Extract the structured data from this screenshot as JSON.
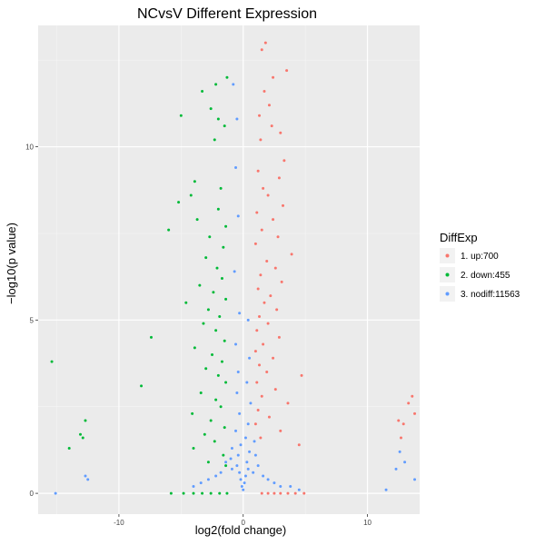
{
  "chart_data": {
    "type": "scatter",
    "title": "NCvsV Different Expression",
    "xlabel": "log2(fold change)",
    "ylabel": "−log10(p value)",
    "xlim": [
      -16.5,
      14.2
    ],
    "ylim": [
      -0.6,
      13.5
    ],
    "x_ticks": [
      -10,
      0,
      10
    ],
    "x_tick_labels": [
      "-10",
      "0",
      "10"
    ],
    "y_ticks": [
      0,
      5,
      10
    ],
    "y_tick_labels": [
      "0",
      "5",
      "10"
    ],
    "grid": true,
    "legend_position": "right",
    "legend": {
      "title": "DiffExp",
      "entries": [
        {
          "label": "1. up:700",
          "color": "#F8766D"
        },
        {
          "label": "2. down:455",
          "color": "#00BA38"
        },
        {
          "label": "3. nodiff:11563",
          "color": "#619CFF"
        }
      ]
    },
    "series": [
      {
        "name": "1. up:700",
        "color": "#F8766D",
        "points": [
          [
            1.8,
            13.0
          ],
          [
            1.5,
            12.8
          ],
          [
            3.5,
            12.2
          ],
          [
            2.4,
            12.0
          ],
          [
            1.7,
            11.6
          ],
          [
            2.1,
            11.2
          ],
          [
            1.3,
            10.9
          ],
          [
            2.3,
            10.6
          ],
          [
            3.0,
            10.4
          ],
          [
            1.4,
            10.2
          ],
          [
            3.3,
            9.6
          ],
          [
            1.2,
            9.3
          ],
          [
            2.9,
            9.1
          ],
          [
            1.6,
            8.8
          ],
          [
            2.0,
            8.6
          ],
          [
            3.2,
            8.3
          ],
          [
            1.1,
            8.1
          ],
          [
            2.4,
            7.9
          ],
          [
            1.5,
            7.6
          ],
          [
            2.8,
            7.4
          ],
          [
            1.0,
            7.2
          ],
          [
            3.9,
            6.9
          ],
          [
            1.9,
            6.7
          ],
          [
            2.6,
            6.5
          ],
          [
            1.4,
            6.3
          ],
          [
            3.1,
            6.1
          ],
          [
            1.2,
            5.9
          ],
          [
            2.2,
            5.7
          ],
          [
            1.7,
            5.5
          ],
          [
            2.7,
            5.3
          ],
          [
            1.3,
            5.1
          ],
          [
            2.0,
            4.9
          ],
          [
            1.1,
            4.7
          ],
          [
            2.9,
            4.5
          ],
          [
            1.6,
            4.3
          ],
          [
            1.0,
            4.1
          ],
          [
            2.4,
            3.9
          ],
          [
            1.3,
            3.7
          ],
          [
            1.9,
            3.5
          ],
          [
            4.7,
            3.4
          ],
          [
            1.1,
            3.2
          ],
          [
            2.6,
            3.0
          ],
          [
            1.5,
            2.8
          ],
          [
            3.6,
            2.6
          ],
          [
            1.2,
            2.4
          ],
          [
            2.1,
            2.2
          ],
          [
            1.0,
            2.0
          ],
          [
            3.0,
            1.8
          ],
          [
            1.4,
            1.6
          ],
          [
            4.5,
            1.4
          ],
          [
            13.6,
            2.8
          ],
          [
            13.3,
            2.6
          ],
          [
            13.8,
            2.3
          ],
          [
            12.5,
            2.1
          ],
          [
            12.9,
            2.0
          ],
          [
            12.7,
            1.6
          ],
          [
            1.5,
            0.0
          ],
          [
            2.0,
            0.0
          ],
          [
            2.5,
            0.0
          ],
          [
            3.0,
            0.0
          ],
          [
            3.6,
            0.0
          ],
          [
            4.2,
            0.0
          ],
          [
            4.9,
            0.0
          ]
        ]
      },
      {
        "name": "2. down:455",
        "color": "#00BA38",
        "points": [
          [
            -1.3,
            12.0
          ],
          [
            -2.2,
            11.8
          ],
          [
            -3.3,
            11.6
          ],
          [
            -2.6,
            11.1
          ],
          [
            -5.0,
            10.9
          ],
          [
            -2.0,
            10.8
          ],
          [
            -1.5,
            10.6
          ],
          [
            -2.3,
            10.2
          ],
          [
            -3.9,
            9.0
          ],
          [
            -1.8,
            8.8
          ],
          [
            -4.2,
            8.6
          ],
          [
            -5.2,
            8.4
          ],
          [
            -2.0,
            8.2
          ],
          [
            -3.7,
            7.9
          ],
          [
            -1.4,
            7.7
          ],
          [
            -6.0,
            7.6
          ],
          [
            -2.7,
            7.4
          ],
          [
            -1.6,
            7.1
          ],
          [
            -3.0,
            6.8
          ],
          [
            -2.1,
            6.5
          ],
          [
            -1.7,
            6.2
          ],
          [
            -3.5,
            6.0
          ],
          [
            -2.4,
            5.8
          ],
          [
            -1.4,
            5.6
          ],
          [
            -4.6,
            5.5
          ],
          [
            -2.8,
            5.3
          ],
          [
            -1.9,
            5.1
          ],
          [
            -3.2,
            4.9
          ],
          [
            -2.2,
            4.7
          ],
          [
            -7.4,
            4.5
          ],
          [
            -1.5,
            4.4
          ],
          [
            -3.9,
            4.2
          ],
          [
            -2.5,
            4.0
          ],
          [
            -1.7,
            3.8
          ],
          [
            -15.4,
            3.8
          ],
          [
            -3.0,
            3.6
          ],
          [
            -2.0,
            3.4
          ],
          [
            -1.4,
            3.2
          ],
          [
            -8.2,
            3.1
          ],
          [
            -3.4,
            2.9
          ],
          [
            -2.2,
            2.7
          ],
          [
            -1.8,
            2.5
          ],
          [
            -4.1,
            2.3
          ],
          [
            -2.6,
            2.1
          ],
          [
            -12.7,
            2.1
          ],
          [
            -1.5,
            1.9
          ],
          [
            -3.1,
            1.7
          ],
          [
            -13.1,
            1.7
          ],
          [
            -12.9,
            1.6
          ],
          [
            -2.3,
            1.5
          ],
          [
            -4.0,
            1.3
          ],
          [
            -14.0,
            1.3
          ],
          [
            -1.6,
            1.1
          ],
          [
            -2.8,
            0.9
          ],
          [
            -1.4,
            0.8
          ],
          [
            -1.3,
            0.0
          ],
          [
            -1.9,
            0.0
          ],
          [
            -2.6,
            0.0
          ],
          [
            -3.3,
            0.0
          ],
          [
            -4.0,
            0.0
          ],
          [
            -4.8,
            0.0
          ],
          [
            -5.8,
            0.0
          ]
        ]
      },
      {
        "name": "3. nodiff:11563",
        "color": "#619CFF",
        "points": [
          [
            -0.8,
            11.8
          ],
          [
            -0.5,
            10.8
          ],
          [
            -0.6,
            9.4
          ],
          [
            -0.4,
            8.0
          ],
          [
            -0.7,
            6.4
          ],
          [
            -0.3,
            5.2
          ],
          [
            0.4,
            5.0
          ],
          [
            -0.6,
            4.3
          ],
          [
            0.5,
            3.9
          ],
          [
            -0.4,
            3.5
          ],
          [
            0.3,
            3.2
          ],
          [
            -0.5,
            2.9
          ],
          [
            0.6,
            2.6
          ],
          [
            -0.3,
            2.3
          ],
          [
            0.4,
            2.0
          ],
          [
            -0.6,
            1.8
          ],
          [
            0.2,
            1.6
          ],
          [
            -0.2,
            1.4
          ],
          [
            0.5,
            1.2
          ],
          [
            -0.4,
            1.1
          ],
          [
            0.3,
            0.9
          ],
          [
            -0.5,
            0.8
          ],
          [
            0.4,
            0.7
          ],
          [
            -0.3,
            0.6
          ],
          [
            0.2,
            0.5
          ],
          [
            -0.2,
            0.4
          ],
          [
            0.1,
            0.3
          ],
          [
            -0.1,
            0.2
          ],
          [
            0.0,
            0.1
          ],
          [
            0.8,
            0.6
          ],
          [
            -0.9,
            0.7
          ],
          [
            1.2,
            0.8
          ],
          [
            -1.4,
            0.9
          ],
          [
            1.6,
            0.5
          ],
          [
            -1.8,
            0.6
          ],
          [
            2.0,
            0.4
          ],
          [
            -2.2,
            0.5
          ],
          [
            2.5,
            0.3
          ],
          [
            -2.8,
            0.4
          ],
          [
            3.0,
            0.2
          ],
          [
            -3.4,
            0.3
          ],
          [
            3.8,
            0.2
          ],
          [
            -4.0,
            0.2
          ],
          [
            4.5,
            0.1
          ],
          [
            -0.9,
            1.3
          ],
          [
            0.9,
            1.5
          ],
          [
            -1.0,
            1.0
          ],
          [
            1.0,
            1.1
          ],
          [
            -15.1,
            0.0
          ],
          [
            -12.7,
            0.5
          ],
          [
            -12.5,
            0.4
          ],
          [
            13.8,
            0.4
          ],
          [
            13.0,
            0.9
          ],
          [
            12.6,
            1.2
          ],
          [
            12.3,
            0.7
          ],
          [
            11.5,
            0.1
          ]
        ]
      }
    ]
  }
}
